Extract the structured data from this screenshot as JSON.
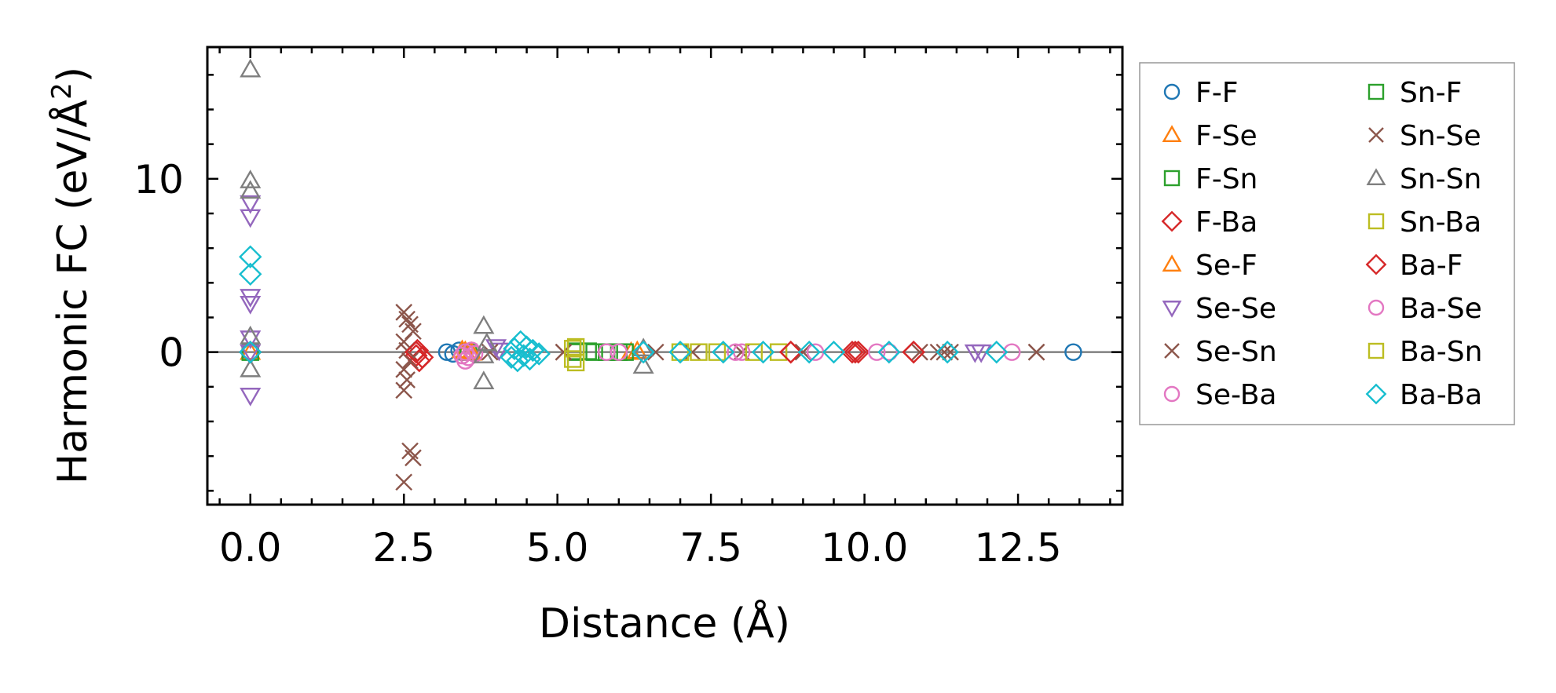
{
  "chart_data": {
    "type": "scatter",
    "title": "",
    "xlabel": "Distance (Å)",
    "ylabel_prefix": "Harmonic FC (eV/Å",
    "ylabel_sup": "2",
    "ylabel_suffix": ")",
    "xlim": [
      -0.7,
      14.2
    ],
    "ylim": [
      -8.8,
      17.6
    ],
    "xticks": [
      0.0,
      2.5,
      5.0,
      7.5,
      10.0,
      12.5
    ],
    "xtick_labels": [
      "0.0",
      "2.5",
      "5.0",
      "7.5",
      "10.0",
      "12.5"
    ],
    "yticks": [
      0,
      10
    ],
    "ytick_labels": [
      "0",
      "10"
    ],
    "reference_line_y": 0,
    "legend_position": "outside-right",
    "series": [
      {
        "name": "F-F",
        "marker": "circle",
        "color": "#1f77b4",
        "points": [
          [
            0,
            0
          ],
          [
            3.2,
            0
          ],
          [
            3.3,
            -0.1
          ],
          [
            3.4,
            0.1
          ],
          [
            13.4,
            0
          ]
        ]
      },
      {
        "name": "F-Se",
        "marker": "triangle-up",
        "color": "#ff7f0e",
        "points": [
          [
            0,
            0
          ],
          [
            3.5,
            0.05
          ],
          [
            3.6,
            -0.05
          ],
          [
            6.2,
            0
          ]
        ]
      },
      {
        "name": "F-Sn",
        "marker": "square",
        "color": "#2ca02c",
        "points": [
          [
            0,
            0
          ],
          [
            3.55,
            0
          ],
          [
            5.3,
            0.05
          ],
          [
            5.6,
            0
          ],
          [
            6.0,
            0
          ]
        ]
      },
      {
        "name": "F-Ba",
        "marker": "diamond",
        "color": "#d62728",
        "points": [
          [
            0,
            0
          ],
          [
            2.7,
            -0.2
          ],
          [
            2.75,
            -0.5
          ],
          [
            2.8,
            -0.3
          ],
          [
            2.72,
            0.1
          ],
          [
            8.8,
            0
          ],
          [
            9.8,
            0
          ],
          [
            9.9,
            0
          ],
          [
            10.8,
            0
          ]
        ]
      },
      {
        "name": "Se-F",
        "marker": "triangle-up",
        "color": "#ff7f0e",
        "points": [
          [
            3.45,
            0.1
          ],
          [
            3.6,
            0
          ],
          [
            6.3,
            0.05
          ]
        ]
      },
      {
        "name": "Se-Se",
        "marker": "triangle-down",
        "color": "#9467bd",
        "points": [
          [
            0,
            7.8
          ],
          [
            0,
            8.6
          ],
          [
            0,
            3.2
          ],
          [
            0,
            2.8
          ],
          [
            0,
            0.8
          ],
          [
            0,
            0
          ],
          [
            0,
            -2.5
          ],
          [
            4.0,
            0.3
          ],
          [
            4.05,
            0.1
          ],
          [
            11.8,
            0
          ],
          [
            11.9,
            0
          ]
        ]
      },
      {
        "name": "Se-Sn",
        "marker": "x",
        "color": "#8c564b",
        "points": [
          [
            2.5,
            2.3
          ],
          [
            2.55,
            1.9
          ],
          [
            2.6,
            1.6
          ],
          [
            2.65,
            1.2
          ],
          [
            2.5,
            0.6
          ],
          [
            2.55,
            0.1
          ],
          [
            2.6,
            -0.5
          ],
          [
            2.5,
            -1.0
          ],
          [
            2.55,
            -1.6
          ],
          [
            2.5,
            -2.2
          ],
          [
            2.6,
            -5.7
          ],
          [
            2.65,
            -6.1
          ],
          [
            2.5,
            -7.5
          ],
          [
            5.1,
            0
          ],
          [
            11.3,
            0
          ],
          [
            12.8,
            0
          ]
        ]
      },
      {
        "name": "Se-Ba",
        "marker": "circle",
        "color": "#e377c2",
        "points": [
          [
            3.45,
            -0.2
          ],
          [
            3.5,
            -0.5
          ],
          [
            3.55,
            -0.3
          ],
          [
            3.6,
            0.1
          ],
          [
            3.65,
            -0.1
          ]
        ]
      },
      {
        "name": "Sn-F",
        "marker": "square",
        "color": "#2ca02c",
        "points": [
          [
            5.3,
            0
          ],
          [
            5.5,
            0.05
          ],
          [
            5.8,
            0
          ],
          [
            6.1,
            0
          ]
        ]
      },
      {
        "name": "Sn-Se",
        "marker": "x",
        "color": "#8c564b",
        "points": [
          [
            3.9,
            0
          ],
          [
            5.1,
            0
          ],
          [
            6.6,
            0
          ],
          [
            7.2,
            0
          ],
          [
            8.0,
            0
          ],
          [
            9.0,
            0
          ],
          [
            10.9,
            0
          ],
          [
            11.2,
            0
          ],
          [
            11.4,
            0
          ],
          [
            12.8,
            0
          ]
        ]
      },
      {
        "name": "Sn-Sn",
        "marker": "triangle-up",
        "color": "#7f7f7f",
        "points": [
          [
            0,
            16.3
          ],
          [
            0,
            9.9
          ],
          [
            0,
            9.3
          ],
          [
            0,
            0.9
          ],
          [
            0,
            -1.0
          ],
          [
            3.8,
            1.5
          ],
          [
            3.85,
            0.5
          ],
          [
            3.8,
            -0.2
          ],
          [
            3.8,
            -1.7
          ],
          [
            6.4,
            -0.8
          ],
          [
            6.4,
            0.2
          ]
        ]
      },
      {
        "name": "Sn-Ba",
        "marker": "square",
        "color": "#bcbd22",
        "points": [
          [
            5.25,
            0.2
          ],
          [
            5.25,
            -0.4
          ],
          [
            7.0,
            0
          ],
          [
            7.3,
            0
          ],
          [
            8.6,
            0
          ]
        ]
      },
      {
        "name": "Ba-F",
        "marker": "diamond",
        "color": "#d62728",
        "points": [
          [
            2.7,
            0
          ],
          [
            8.8,
            0
          ],
          [
            9.85,
            0
          ],
          [
            10.8,
            0
          ]
        ]
      },
      {
        "name": "Ba-Se",
        "marker": "circle",
        "color": "#e377c2",
        "points": [
          [
            3.5,
            0
          ],
          [
            5.8,
            0
          ],
          [
            6.0,
            0
          ],
          [
            7.9,
            0
          ],
          [
            8.0,
            0
          ],
          [
            9.2,
            0
          ],
          [
            10.2,
            0
          ],
          [
            10.4,
            0
          ],
          [
            12.4,
            0
          ]
        ]
      },
      {
        "name": "Ba-Sn",
        "marker": "square",
        "color": "#bcbd22",
        "points": [
          [
            5.3,
            0.3
          ],
          [
            5.3,
            -0.6
          ],
          [
            7.6,
            0
          ],
          [
            8.2,
            0
          ]
        ]
      },
      {
        "name": "Ba-Ba",
        "marker": "diamond",
        "color": "#17becf",
        "points": [
          [
            0,
            5.5
          ],
          [
            0,
            4.5
          ],
          [
            0,
            0
          ],
          [
            4.3,
            0.2
          ],
          [
            4.35,
            -0.5
          ],
          [
            4.4,
            0.6
          ],
          [
            4.45,
            -0.2
          ],
          [
            4.5,
            0.3
          ],
          [
            4.55,
            -0.4
          ],
          [
            4.6,
            0.1
          ],
          [
            4.7,
            -0.1
          ],
          [
            4.25,
            -0.3
          ],
          [
            6.4,
            0
          ],
          [
            7.0,
            0
          ],
          [
            7.7,
            0
          ],
          [
            8.35,
            0
          ],
          [
            9.1,
            0
          ],
          [
            9.5,
            0
          ],
          [
            10.4,
            0
          ],
          [
            11.35,
            0
          ],
          [
            12.15,
            0
          ]
        ]
      }
    ]
  }
}
